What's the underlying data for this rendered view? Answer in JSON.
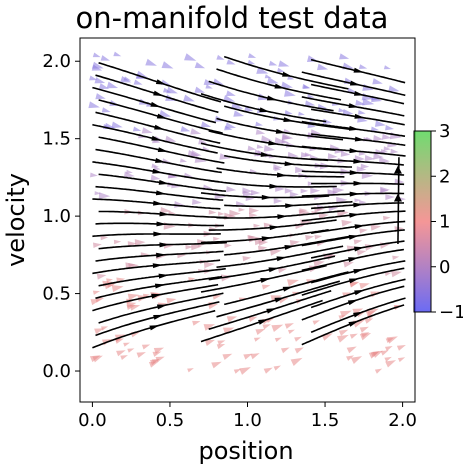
{
  "chart_data": {
    "type": "streamplot",
    "title": "on-manifold test data",
    "xlabel": "position",
    "ylabel": "velocity",
    "xlim": [
      -0.08,
      2.08
    ],
    "ylim": [
      -0.2,
      2.15
    ],
    "xticks": [
      0.0,
      0.5,
      1.0,
      1.5,
      2.0
    ],
    "xtick_labels": [
      "0.0",
      "0.5",
      "1.0",
      "1.5",
      "2.0"
    ],
    "yticks": [
      0.0,
      0.5,
      1.0,
      1.5,
      2.0
    ],
    "ytick_labels": [
      "0.0",
      "0.5",
      "1.0",
      "1.5",
      "2.0"
    ],
    "grid": false,
    "colorbar": {
      "range": [
        -1,
        3
      ],
      "ticks": [
        -1,
        0,
        1,
        2,
        3
      ],
      "tick_labels": [
        "−1",
        "0",
        "1",
        "2",
        "3"
      ],
      "colormap": [
        "#3a3af0",
        "#f06a6a",
        "#40d040"
      ]
    },
    "stream_color": "#000000",
    "markers": {
      "velocity_bands": [
        {
          "y_range": [
            1.55,
            2.05
          ],
          "color": "#8a7ae0"
        },
        {
          "y_range": [
            1.05,
            1.55
          ],
          "color": "#b088c8"
        },
        {
          "y_range": [
            0.6,
            1.05
          ],
          "color": "#d08aa0"
        },
        {
          "y_range": [
            0.0,
            0.6
          ],
          "color": "#e88a8a"
        }
      ]
    }
  }
}
